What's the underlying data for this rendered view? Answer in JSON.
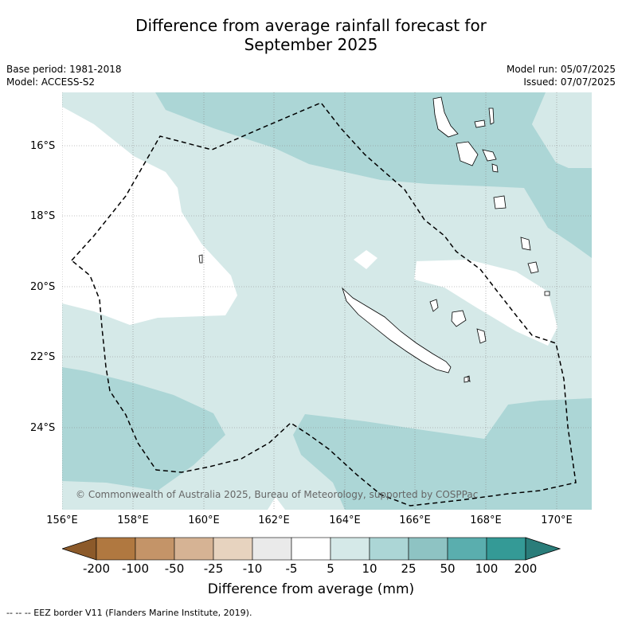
{
  "title_line1": "Difference from average rainfall forecast for",
  "title_line2": "September 2025",
  "meta": {
    "base_period": "Base period: 1981-2018",
    "model": "Model: ACCESS-S2",
    "model_run": "Model run: 05/07/2025",
    "issued": "Issued: 07/07/2025"
  },
  "map": {
    "lat_labels": [
      "16°S",
      "18°S",
      "20°S",
      "22°S",
      "24°S"
    ],
    "lon_labels": [
      "156°E",
      "158°E",
      "160°E",
      "162°E",
      "164°E",
      "166°E",
      "168°E",
      "170°E"
    ],
    "copyright": "© Commonwealth of Australia 2025, Bureau of Meteorology, supported by COSPPac"
  },
  "colorbar": {
    "ticks": [
      "-200",
      "-100",
      "-50",
      "-25",
      "-10",
      "-5",
      "5",
      "10",
      "25",
      "50",
      "100",
      "200"
    ],
    "colors": [
      "#8c5a2a",
      "#b07840",
      "#c49468",
      "#d6b394",
      "#e7d3bf",
      "#eaeaea",
      "#ffffff",
      "#d5e9e8",
      "#acd6d6",
      "#8ec3c3",
      "#5aaeae",
      "#349a96",
      "#2a7d7a"
    ],
    "label": "Difference from average (mm)"
  },
  "footnote": "--  --  -- EEZ border V11 (Flanders Marine Institute, 2019)."
}
